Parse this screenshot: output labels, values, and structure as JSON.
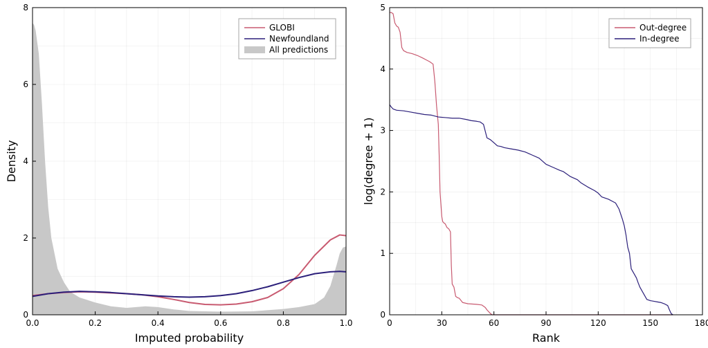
{
  "chart_data": [
    {
      "type": "area",
      "xlabel": "Imputed probability",
      "ylabel": "Density",
      "xlim": [
        0.0,
        1.0
      ],
      "ylim": [
        0,
        8
      ],
      "xticks": [
        "0.0",
        "0.2",
        "0.4",
        "0.6",
        "0.8",
        "1.0"
      ],
      "yticks": [
        "0",
        "2",
        "4",
        "6",
        "8"
      ],
      "grid": true,
      "legend_position": "top-right",
      "series": [
        {
          "name": "GLOBI",
          "kind": "line",
          "color": "#c85a70",
          "x": [
            0.0,
            0.05,
            0.1,
            0.15,
            0.2,
            0.25,
            0.3,
            0.35,
            0.4,
            0.45,
            0.5,
            0.55,
            0.6,
            0.65,
            0.7,
            0.75,
            0.8,
            0.85,
            0.9,
            0.95,
            0.98,
            1.0
          ],
          "y": [
            0.5,
            0.55,
            0.58,
            0.6,
            0.59,
            0.57,
            0.55,
            0.52,
            0.47,
            0.4,
            0.32,
            0.27,
            0.26,
            0.28,
            0.34,
            0.45,
            0.68,
            1.05,
            1.55,
            1.95,
            2.08,
            2.06
          ]
        },
        {
          "name": "Newfoundland",
          "kind": "line",
          "color": "#2b1f7a",
          "x": [
            0.0,
            0.05,
            0.1,
            0.15,
            0.2,
            0.25,
            0.3,
            0.35,
            0.4,
            0.45,
            0.5,
            0.55,
            0.6,
            0.65,
            0.7,
            0.75,
            0.8,
            0.85,
            0.9,
            0.95,
            0.98,
            1.0
          ],
          "y": [
            0.48,
            0.55,
            0.59,
            0.61,
            0.6,
            0.58,
            0.55,
            0.52,
            0.49,
            0.47,
            0.46,
            0.47,
            0.5,
            0.55,
            0.63,
            0.73,
            0.85,
            0.97,
            1.07,
            1.12,
            1.13,
            1.12
          ]
        },
        {
          "name": "All predictions",
          "kind": "area",
          "color": "#c8c8c8",
          "x": [
            0.0,
            0.005,
            0.01,
            0.02,
            0.03,
            0.04,
            0.05,
            0.06,
            0.08,
            0.1,
            0.12,
            0.15,
            0.2,
            0.25,
            0.3,
            0.33,
            0.36,
            0.4,
            0.45,
            0.5,
            0.6,
            0.7,
            0.8,
            0.85,
            0.9,
            0.93,
            0.95,
            0.97,
            0.98,
            0.99,
            1.0
          ],
          "y": [
            7.6,
            7.55,
            7.4,
            6.8,
            5.5,
            4.0,
            2.8,
            2.0,
            1.2,
            0.85,
            0.6,
            0.45,
            0.32,
            0.22,
            0.18,
            0.2,
            0.22,
            0.2,
            0.14,
            0.1,
            0.08,
            0.09,
            0.15,
            0.2,
            0.28,
            0.45,
            0.75,
            1.3,
            1.6,
            1.75,
            1.78
          ]
        }
      ]
    },
    {
      "type": "line",
      "xlabel": "Rank",
      "ylabel": "log(degree + 1)",
      "xlim": [
        0,
        180
      ],
      "ylim": [
        0,
        5
      ],
      "xticks": [
        "0",
        "30",
        "60",
        "90",
        "120",
        "150",
        "180"
      ],
      "yticks": [
        "0",
        "1",
        "2",
        "3",
        "4",
        "5"
      ],
      "grid": true,
      "legend_position": "top-right",
      "series": [
        {
          "name": "Out-degree",
          "color": "#c85a70",
          "x": [
            0,
            1,
            2,
            3,
            4,
            5,
            6,
            7,
            8,
            10,
            13,
            16,
            19,
            21,
            23,
            25,
            26,
            27,
            28,
            28.5,
            29,
            29.5,
            30,
            30.5,
            31,
            32,
            33,
            34,
            35,
            35.5,
            36,
            37,
            38,
            39,
            40,
            42,
            45,
            50,
            53,
            55,
            56,
            57,
            58,
            59,
            60,
            100,
            163
          ],
          "y": [
            4.92,
            4.92,
            4.9,
            4.75,
            4.7,
            4.68,
            4.6,
            4.35,
            4.3,
            4.27,
            4.25,
            4.22,
            4.18,
            4.15,
            4.12,
            4.08,
            3.8,
            3.4,
            3.1,
            2.6,
            2.0,
            1.8,
            1.6,
            1.52,
            1.5,
            1.48,
            1.42,
            1.4,
            1.35,
            0.8,
            0.5,
            0.45,
            0.3,
            0.28,
            0.27,
            0.2,
            0.18,
            0.17,
            0.16,
            0.12,
            0.08,
            0.05,
            0.02,
            0.0,
            0.0,
            0.0,
            0.0
          ]
        },
        {
          "name": "In-degree",
          "color": "#2b1f7a",
          "x": [
            0,
            1,
            2,
            4,
            8,
            12,
            16,
            20,
            24,
            28,
            32,
            36,
            40,
            44,
            47,
            50,
            52,
            54,
            56,
            58,
            60,
            62,
            64,
            66,
            70,
            74,
            78,
            82,
            86,
            90,
            94,
            98,
            100,
            104,
            108,
            110,
            114,
            118,
            120,
            122,
            126,
            128,
            130,
            132,
            134,
            135,
            136,
            137,
            138,
            139,
            140,
            142,
            143,
            144,
            146,
            148,
            150,
            152,
            154,
            156,
            158,
            160,
            161,
            162,
            163
          ],
          "y": [
            3.42,
            3.38,
            3.35,
            3.33,
            3.32,
            3.3,
            3.28,
            3.26,
            3.25,
            3.22,
            3.21,
            3.2,
            3.2,
            3.18,
            3.16,
            3.15,
            3.14,
            3.1,
            2.88,
            2.85,
            2.8,
            2.75,
            2.74,
            2.72,
            2.7,
            2.68,
            2.65,
            2.6,
            2.55,
            2.45,
            2.4,
            2.35,
            2.33,
            2.25,
            2.2,
            2.15,
            2.08,
            2.02,
            1.98,
            1.92,
            1.88,
            1.85,
            1.82,
            1.72,
            1.55,
            1.45,
            1.3,
            1.1,
            1.0,
            0.75,
            0.7,
            0.6,
            0.52,
            0.45,
            0.35,
            0.25,
            0.23,
            0.22,
            0.21,
            0.2,
            0.18,
            0.15,
            0.08,
            0.02,
            0.0
          ]
        }
      ]
    }
  ]
}
